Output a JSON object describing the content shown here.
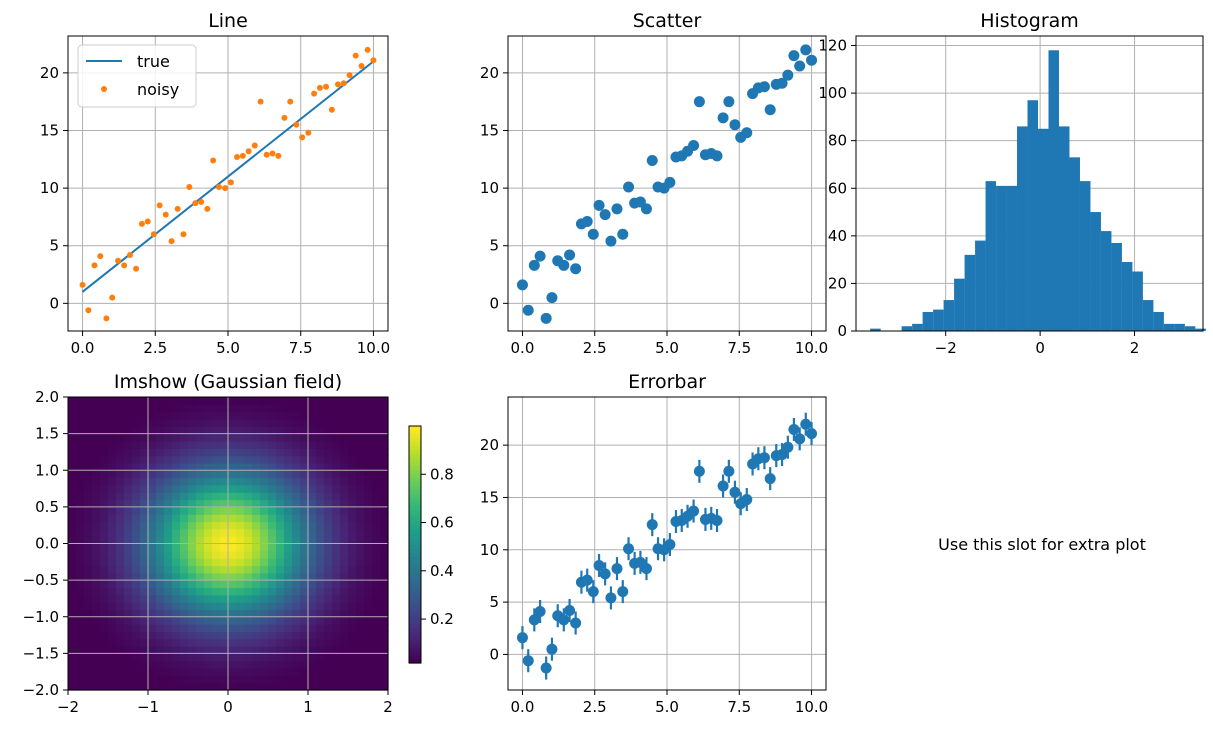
{
  "colors": {
    "blue": "#1f77b4",
    "orange": "#ff7f0e",
    "grid": "#b0b0b0"
  },
  "placeholder_text": "Use this slot for extra plot",
  "chart_data": [
    {
      "id": "line",
      "type": "line",
      "title": "Line",
      "grid": true,
      "xlim": [
        -0.5,
        10.5
      ],
      "ylim": [
        -2.4,
        23.2
      ],
      "xticks": [
        0,
        2.5,
        5,
        7.5,
        10
      ],
      "xtick_labels": [
        "0.0",
        "2.5",
        "5.0",
        "7.5",
        "10.0"
      ],
      "yticks": [
        0,
        5,
        10,
        15,
        20
      ],
      "ytick_labels": [
        "0",
        "5",
        "10",
        "15",
        "20"
      ],
      "legend": {
        "position": "upper-left",
        "entries": [
          "true",
          "noisy"
        ]
      },
      "series": [
        {
          "name": "true",
          "style": "line",
          "color": "#1f77b4",
          "x": [
            0,
            10
          ],
          "y": [
            1,
            21
          ]
        },
        {
          "name": "noisy",
          "style": "dots",
          "color": "#ff7f0e",
          "ref": "noisy"
        }
      ]
    },
    {
      "id": "scatter",
      "type": "scatter",
      "title": "Scatter",
      "grid": true,
      "xlim": [
        -0.5,
        10.5
      ],
      "ylim": [
        -2.4,
        23.2
      ],
      "xticks": [
        0,
        2.5,
        5,
        7.5,
        10
      ],
      "xtick_labels": [
        "0.0",
        "2.5",
        "5.0",
        "7.5",
        "10.0"
      ],
      "yticks": [
        0,
        5,
        10,
        15,
        20
      ],
      "ytick_labels": [
        "0",
        "5",
        "10",
        "15",
        "20"
      ],
      "series": [
        {
          "style": "markers",
          "color": "#1f77b4",
          "ref": "noisy"
        }
      ]
    },
    {
      "id": "hist",
      "type": "bar",
      "title": "Histogram",
      "grid": true,
      "xlim": [
        -3.9,
        3.45
      ],
      "ylim": [
        0,
        124
      ],
      "xticks": [
        -2,
        0,
        2
      ],
      "xtick_labels": [
        "−2",
        "0",
        "2"
      ],
      "yticks": [
        0,
        20,
        40,
        60,
        80,
        100,
        120
      ],
      "ytick_labels": [
        "0",
        "20",
        "40",
        "60",
        "80",
        "100",
        "120"
      ],
      "bin_start": -3.6,
      "bin_width": 0.2222,
      "counts": [
        1,
        0,
        0,
        2,
        3,
        8,
        9,
        13,
        22,
        32,
        38,
        63,
        61,
        61,
        86,
        97,
        85,
        118,
        86,
        73,
        63,
        50,
        42,
        37,
        29,
        25,
        13,
        8,
        3,
        3,
        2,
        1
      ],
      "color": "#1f77b4"
    },
    {
      "id": "imshow",
      "type": "heatmap",
      "title": "Imshow (Gaussian field)",
      "grid": true,
      "xlim": [
        -2,
        2
      ],
      "ylim": [
        -2,
        2
      ],
      "xticks": [
        -2,
        -1,
        0,
        1,
        2
      ],
      "xtick_labels": [
        "−2",
        "−1",
        "0",
        "1",
        "2"
      ],
      "yticks": [
        -2,
        -1.5,
        -1,
        -0.5,
        0,
        0.5,
        1,
        1.5,
        2
      ],
      "ytick_labels": [
        "−2.0",
        "−1.5",
        "−1.0",
        "−0.5",
        "0.0",
        "0.5",
        "1.0",
        "1.5",
        "2.0"
      ],
      "grid_size": 40,
      "field": "exp(-(x^2+y^2))",
      "colormap": "viridis",
      "colorbar": {
        "min": 0.018,
        "max": 1.0,
        "ticks": [
          0.2,
          0.4,
          0.6,
          0.8
        ],
        "tick_labels": [
          "0.2",
          "0.4",
          "0.6",
          "0.8"
        ]
      }
    },
    {
      "id": "errorbar",
      "type": "scatter",
      "title": "Errorbar",
      "grid": true,
      "xlim": [
        -0.5,
        10.5
      ],
      "ylim": [
        -3.4,
        24.6
      ],
      "xticks": [
        0,
        2.5,
        5,
        7.5,
        10
      ],
      "xtick_labels": [
        "0.0",
        "2.5",
        "5.0",
        "7.5",
        "10.0"
      ],
      "yticks": [
        0,
        5,
        10,
        15,
        20
      ],
      "ytick_labels": [
        "0",
        "5",
        "10",
        "15",
        "20"
      ],
      "error": 1.1,
      "series": [
        {
          "style": "errorbar",
          "color": "#1f77b4",
          "ref": "noisy"
        }
      ]
    }
  ],
  "noisy": {
    "x": [
      0.0,
      0.2,
      0.41,
      0.61,
      0.82,
      1.02,
      1.22,
      1.43,
      1.63,
      1.84,
      2.04,
      2.24,
      2.45,
      2.65,
      2.86,
      3.06,
      3.27,
      3.47,
      3.67,
      3.88,
      4.08,
      4.29,
      4.49,
      4.69,
      4.9,
      5.1,
      5.31,
      5.51,
      5.71,
      5.92,
      6.12,
      6.33,
      6.53,
      6.73,
      6.94,
      7.14,
      7.35,
      7.55,
      7.76,
      7.96,
      8.16,
      8.37,
      8.57,
      8.78,
      8.98,
      9.18,
      9.39,
      9.59,
      9.8,
      10.0
    ],
    "y": [
      1.6,
      -0.6,
      3.3,
      4.1,
      -1.3,
      0.5,
      3.7,
      3.3,
      4.2,
      3.0,
      6.9,
      7.1,
      6.0,
      8.5,
      7.7,
      5.4,
      8.2,
      6.0,
      10.1,
      8.7,
      8.8,
      8.2,
      12.4,
      10.1,
      10.0,
      10.5,
      12.7,
      12.8,
      13.2,
      13.7,
      17.5,
      12.9,
      13.0,
      12.8,
      16.1,
      17.5,
      15.5,
      14.4,
      14.8,
      18.2,
      18.7,
      18.8,
      16.8,
      19.0,
      19.1,
      19.8,
      21.5,
      20.6,
      22.0,
      21.1
    ]
  }
}
